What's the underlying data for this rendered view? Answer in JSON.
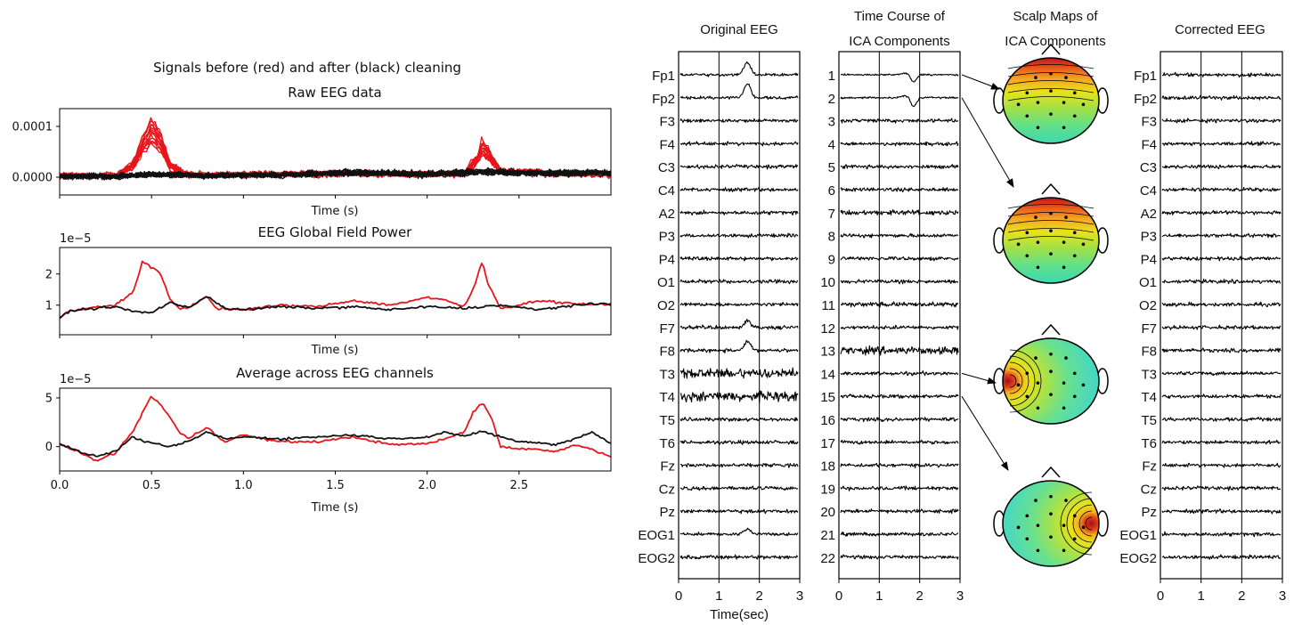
{
  "left_panel": {
    "suptitle": "Signals before (red) and after (black) cleaning",
    "colors": {
      "before": "#e8151b",
      "after": "#111111"
    }
  },
  "chart_data": [
    {
      "type": "line",
      "title": "Raw EEG data",
      "xlabel": "Time (s)",
      "ylabel": "",
      "xlim": [
        0,
        3.0
      ],
      "ylim": [
        -3.5e-05,
        0.000135
      ],
      "yticks": [
        "0.0000",
        "0.0001"
      ],
      "ytick_values": [
        0,
        0.0001
      ],
      "offset_label": "",
      "show_xtick_labels": false,
      "series": [
        {
          "legend": "before (red)",
          "color": "#e8151b",
          "x": [
            0.0,
            0.3,
            0.4,
            0.45,
            0.5,
            0.55,
            0.6,
            0.7,
            1.2,
            1.6,
            2.2,
            2.28,
            2.3,
            2.33,
            2.4,
            2.7,
            3.0
          ],
          "y": [
            5e-06,
            4e-06,
            3e-05,
            8e-05,
            0.00012,
            9e-05,
            3e-05,
            6e-06,
            8e-06,
            1e-05,
            8e-06,
            5e-05,
            8e-05,
            6e-05,
            1.5e-05,
            1e-05,
            8e-06
          ]
        },
        {
          "legend": "after (black)",
          "color": "#111111",
          "x": [
            0.0,
            0.3,
            0.5,
            0.8,
            1.2,
            1.6,
            2.0,
            2.3,
            2.6,
            3.0
          ],
          "y": [
            3e-06,
            2e-06,
            8e-06,
            4e-06,
            6e-06,
            1.2e-05,
            8e-06,
            1.4e-05,
            1e-05,
            1.2e-05
          ]
        }
      ]
    },
    {
      "type": "line",
      "title": "EEG Global Field Power",
      "xlabel": "Time (s)",
      "ylabel": "",
      "xlim": [
        0,
        3.0
      ],
      "ylim": [
        0.05,
        2.85
      ],
      "yticks": [
        "1",
        "2"
      ],
      "ytick_values": [
        1,
        2
      ],
      "offset_label": "1e−5",
      "show_xtick_labels": false,
      "series": [
        {
          "legend": "before (red)",
          "color": "#e8151b",
          "x": [
            0.0,
            0.05,
            0.1,
            0.2,
            0.3,
            0.4,
            0.45,
            0.5,
            0.55,
            0.6,
            0.65,
            0.7,
            0.8,
            0.85,
            1.0,
            1.2,
            1.4,
            1.6,
            1.8,
            2.0,
            2.1,
            2.2,
            2.25,
            2.3,
            2.33,
            2.4,
            2.5,
            2.6,
            2.8,
            3.0
          ],
          "y": [
            0.6,
            0.8,
            0.85,
            0.95,
            1.0,
            1.4,
            2.4,
            2.2,
            2.0,
            1.2,
            0.9,
            0.9,
            1.3,
            0.9,
            0.85,
            1.0,
            0.95,
            1.15,
            1.0,
            1.25,
            1.15,
            0.95,
            1.5,
            2.4,
            1.7,
            0.9,
            1.0,
            1.15,
            1.05,
            1.0
          ]
        },
        {
          "legend": "after (black)",
          "color": "#111111",
          "x": [
            0.0,
            0.05,
            0.1,
            0.2,
            0.3,
            0.4,
            0.5,
            0.6,
            0.7,
            0.8,
            0.9,
            1.0,
            1.2,
            1.4,
            1.6,
            1.8,
            2.0,
            2.2,
            2.4,
            2.6,
            2.8,
            3.0
          ],
          "y": [
            0.6,
            0.8,
            0.85,
            0.9,
            0.95,
            0.8,
            0.75,
            1.1,
            0.9,
            1.3,
            0.9,
            0.85,
            0.95,
            0.9,
            0.95,
            0.85,
            0.95,
            0.9,
            1.0,
            0.85,
            1.0,
            1.05
          ]
        }
      ]
    },
    {
      "type": "line",
      "title": "Average across EEG channels",
      "xlabel": "Time (s)",
      "ylabel": "",
      "xlim": [
        0,
        3.0
      ],
      "ylim": [
        -2.5,
        6.0
      ],
      "yticks": [
        "0",
        "5"
      ],
      "ytick_values": [
        0,
        5
      ],
      "xticks": [
        "0.0",
        "0.5",
        "1.0",
        "1.5",
        "2.0",
        "2.5"
      ],
      "xtick_values": [
        0,
        0.5,
        1.0,
        1.5,
        2.0,
        2.5
      ],
      "offset_label": "1e−5",
      "show_xtick_labels": true,
      "series": [
        {
          "legend": "before (red)",
          "color": "#e8151b",
          "x": [
            0.0,
            0.1,
            0.2,
            0.25,
            0.3,
            0.35,
            0.4,
            0.45,
            0.5,
            0.55,
            0.6,
            0.65,
            0.7,
            0.8,
            0.9,
            1.0,
            1.2,
            1.4,
            1.6,
            1.8,
            2.0,
            2.1,
            2.2,
            2.25,
            2.3,
            2.35,
            2.4,
            2.5,
            2.6,
            2.7,
            2.8,
            2.9,
            3.0
          ],
          "y": [
            0.3,
            -0.5,
            -1.5,
            -1.0,
            -0.8,
            0.5,
            1.5,
            3.5,
            5.2,
            4.3,
            3.0,
            1.5,
            0.8,
            2.0,
            0.5,
            1.2,
            0.5,
            0.5,
            1.0,
            0.2,
            0.3,
            0.8,
            1.5,
            3.5,
            4.5,
            3.0,
            0.0,
            -0.2,
            -0.3,
            -0.5,
            0.2,
            -0.3,
            -1.0
          ]
        },
        {
          "legend": "after (black)",
          "color": "#111111",
          "x": [
            0.0,
            0.1,
            0.2,
            0.3,
            0.4,
            0.5,
            0.6,
            0.7,
            0.8,
            0.9,
            1.0,
            1.2,
            1.4,
            1.6,
            1.8,
            2.0,
            2.1,
            2.2,
            2.3,
            2.4,
            2.5,
            2.6,
            2.7,
            2.8,
            2.9,
            3.0
          ],
          "y": [
            0.3,
            -0.5,
            -1.0,
            -0.5,
            1.0,
            0.3,
            0.0,
            0.5,
            1.5,
            0.8,
            1.0,
            0.8,
            1.0,
            1.2,
            0.8,
            1.0,
            1.5,
            1.0,
            1.6,
            1.0,
            0.5,
            0.4,
            0.2,
            0.8,
            1.5,
            0.3
          ]
        }
      ]
    }
  ],
  "eeg_panels": {
    "original": {
      "title": "Original EEG",
      "xlabel": "Time(sec)",
      "xticks": [
        "0",
        "1",
        "2",
        "3"
      ],
      "channels": [
        "Fp1",
        "Fp2",
        "F3",
        "F4",
        "C3",
        "C4",
        "A2",
        "P3",
        "P4",
        "O1",
        "O2",
        "F7",
        "F8",
        "T3",
        "T4",
        "T5",
        "T6",
        "Fz",
        "Cz",
        "Pz",
        "EOG1",
        "EOG2"
      ]
    },
    "ica": {
      "title_line1": "Time Course of",
      "title_line2": "ICA Components",
      "xticks": [
        "0",
        "1",
        "2",
        "3"
      ],
      "components": [
        "1",
        "2",
        "3",
        "4",
        "5",
        "6",
        "7",
        "8",
        "9",
        "10",
        "11",
        "12",
        "13",
        "14",
        "15",
        "16",
        "17",
        "18",
        "19",
        "20",
        "21",
        "22"
      ]
    },
    "scalp": {
      "title_line1": "Scalp Maps of",
      "title_line2": "ICA Components",
      "maps": [
        {
          "component": "1",
          "pattern": "frontal"
        },
        {
          "component": "2",
          "pattern": "frontal"
        },
        {
          "component": "14",
          "pattern": "left-temporal"
        },
        {
          "component": "15",
          "pattern": "right-temporal"
        }
      ]
    },
    "corrected": {
      "title": "Corrected EEG",
      "xticks": [
        "0",
        "1",
        "2",
        "3"
      ],
      "channels": [
        "Fp1",
        "Fp2",
        "F3",
        "F4",
        "C3",
        "C4",
        "A2",
        "P3",
        "P4",
        "O1",
        "O2",
        "F7",
        "F8",
        "T3",
        "T4",
        "T5",
        "T6",
        "Fz",
        "Cz",
        "Pz",
        "EOG1",
        "EOG2"
      ]
    }
  }
}
